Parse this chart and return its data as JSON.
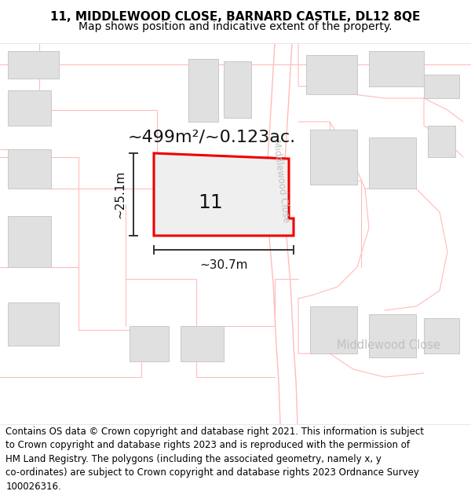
{
  "title_line1": "11, MIDDLEWOOD CLOSE, BARNARD CASTLE, DL12 8QE",
  "title_line2": "Map shows position and indicative extent of the property.",
  "area_label": "~499m²/~0.123ac.",
  "width_label": "~30.7m",
  "height_label": "~25.1m",
  "number_label": "11",
  "road_label_rotated": "Middlewood Close",
  "road_label_bottom": "Middlewood Close",
  "footer_text": "Contains OS data © Crown copyright and database right 2021. This information is subject\nto Crown copyright and database rights 2023 and is reproduced with the permission of\nHM Land Registry. The polygons (including the associated geometry, namely x, y\nco-ordinates) are subject to Crown copyright and database rights 2023 Ordnance Survey\n100026316.",
  "bg_color": "#ffffff",
  "map_bg": "#f8f8f8",
  "plot_fill": "#efefef",
  "plot_border": "#ee0000",
  "building_fill": "#e0e0e0",
  "building_border": "#c8c8c8",
  "road_line_color": "#ffbbbb",
  "dim_color": "#333333",
  "road_text_color": "#c0c0c0",
  "title_fontsize": 11,
  "subtitle_fontsize": 10,
  "area_fontsize": 16,
  "number_fontsize": 18,
  "footer_fontsize": 8.5
}
